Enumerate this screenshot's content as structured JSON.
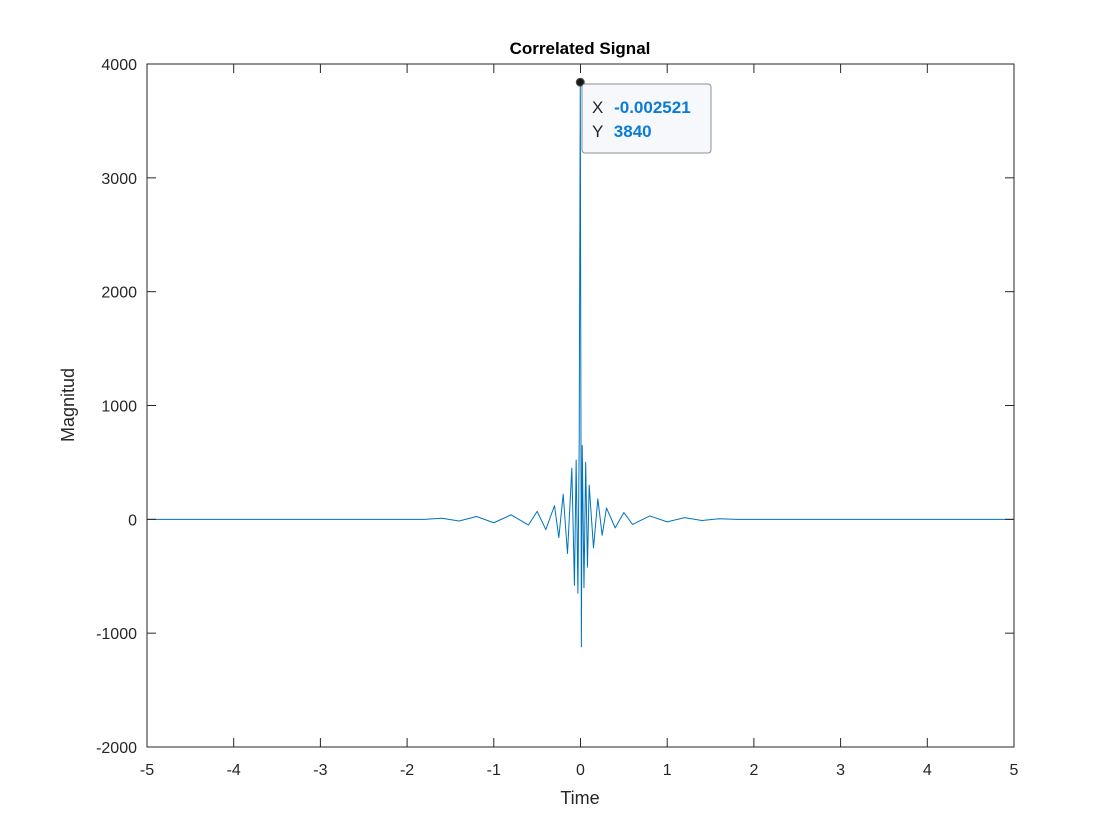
{
  "chart_data": {
    "type": "line",
    "title": "Correlated Signal",
    "xlabel": "Time",
    "ylabel": "Magnitud",
    "xlim": [
      -5,
      5
    ],
    "ylim": [
      -2000,
      4000
    ],
    "xticks": [
      -5,
      -4,
      -3,
      -2,
      -1,
      0,
      1,
      2,
      3,
      4,
      5
    ],
    "yticks": [
      -2000,
      -1000,
      0,
      1000,
      2000,
      3000,
      4000
    ],
    "grid": false,
    "series": [
      {
        "color": "#0072BD",
        "x": [
          -5,
          -1.8,
          -1.6,
          -1.4,
          -1.2,
          -1.0,
          -0.8,
          -0.6,
          -0.5,
          -0.4,
          -0.3,
          -0.25,
          -0.2,
          -0.15,
          -0.1,
          -0.07,
          -0.05,
          -0.03,
          -0.015,
          -0.0025,
          0.01,
          0.02,
          0.04,
          0.06,
          0.08,
          0.1,
          0.15,
          0.2,
          0.25,
          0.3,
          0.4,
          0.5,
          0.6,
          0.8,
          1.0,
          1.2,
          1.4,
          1.6,
          1.8,
          5
        ],
        "y": [
          0,
          0,
          10,
          -15,
          25,
          -30,
          40,
          -50,
          70,
          -90,
          120,
          -160,
          220,
          -300,
          450,
          -580,
          520,
          -650,
          680,
          3840,
          -1120,
          650,
          -600,
          500,
          -420,
          300,
          -250,
          180,
          -140,
          100,
          -75,
          60,
          -45,
          30,
          -22,
          15,
          -10,
          5,
          0,
          0
        ]
      }
    ],
    "datatip": {
      "x": -0.002521,
      "y": 3840,
      "x_label": "X",
      "y_label": "Y",
      "x_text": "-0.002521",
      "y_text": "3840"
    }
  }
}
